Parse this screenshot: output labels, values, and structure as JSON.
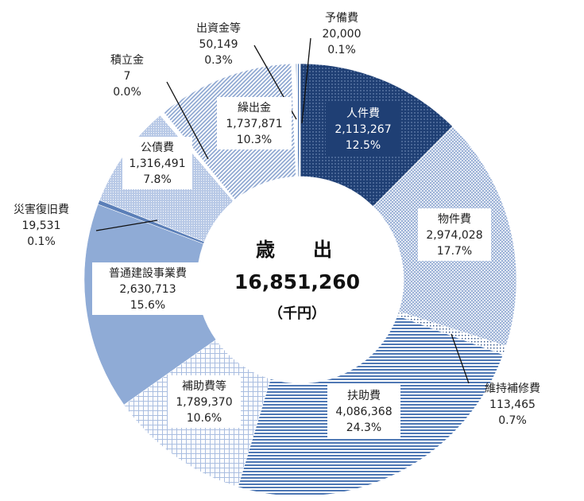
{
  "chart_data": {
    "type": "pie",
    "style": "donut",
    "center": {
      "title": "歳　　出",
      "total": "16,851,260",
      "unit": "（千円）"
    },
    "slices": [
      {
        "label": "人件費",
        "value": 2113267,
        "value_text": "2,113,267",
        "percent": "12.5%",
        "color": "#1f3f74"
      },
      {
        "label": "物件費",
        "value": 2974028,
        "value_text": "2,974,028",
        "percent": "17.7%",
        "color": "#b5c6e0"
      },
      {
        "label": "維持補修費",
        "value": 113465,
        "value_text": "113,465",
        "percent": "0.7%",
        "color": "#2a4f86"
      },
      {
        "label": "扶助費",
        "value": 4086368,
        "value_text": "4,086,368",
        "percent": "24.3%",
        "color": "#4f78b4"
      },
      {
        "label": "補助費等",
        "value": 1789370,
        "value_text": "1,789,370",
        "percent": "10.6%",
        "color": "#c7d5ec"
      },
      {
        "label": "普通建設事業費",
        "value": 2630713,
        "value_text": "2,630,713",
        "percent": "15.6%",
        "color": "#8fabd6"
      },
      {
        "label": "災害復旧費",
        "value": 19531,
        "value_text": "19,531",
        "percent": "0.1%",
        "color": "#6f8fc0"
      },
      {
        "label": "公債費",
        "value": 1316491,
        "value_text": "1,316,491",
        "percent": "7.8%",
        "color": "#a7bde0"
      },
      {
        "label": "積立金",
        "value": 7,
        "value_text": "7",
        "percent": "0.0%",
        "color": "#dbe4f2"
      },
      {
        "label": "繰出金",
        "value": 1737871,
        "value_text": "1,737,871",
        "percent": "10.3%",
        "color": "#9bb2da"
      },
      {
        "label": "出資金等",
        "value": 50149,
        "value_text": "50,149",
        "percent": "0.3%",
        "color": "#dbe4f2"
      },
      {
        "label": "予備費",
        "value": 20000,
        "value_text": "20,000",
        "percent": "0.1%",
        "color": "#2a4f86"
      }
    ]
  }
}
